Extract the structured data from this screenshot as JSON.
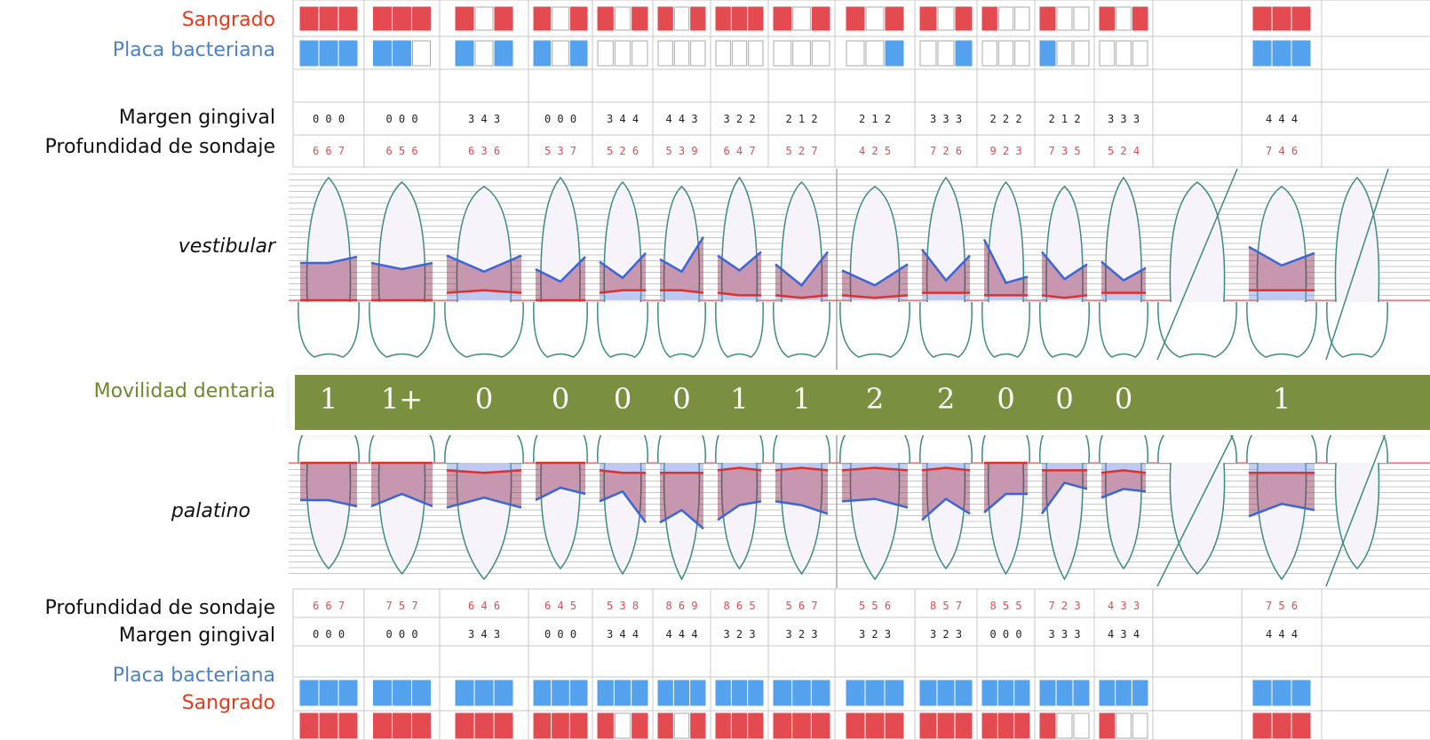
{
  "labels": {
    "sangrado_top": "Sangrado",
    "placa_top": "Placa bacteriana",
    "margen_top": "Margen gingival",
    "profundidad_top": "Profundidad de sondaje",
    "vestibular": "vestibular",
    "movilidad": "Movilidad dentaria",
    "palatino": "palatino",
    "profundidad_bottom": "Profundidad de sondaje",
    "margen_bottom": "Margen gingival",
    "placa_bottom": "Placa bacteriana",
    "sangrado_bottom": "Sangrado"
  },
  "colors": {
    "bleeding": "#e34b50",
    "plaque": "#54a2ee",
    "mobility": "#7a9040",
    "label_red": "#e8391b",
    "label_blue": "#4f80c2",
    "label_green": "#6b8a2c"
  },
  "teeth_count": 16,
  "top": {
    "sangrado": [
      [
        1,
        1,
        1
      ],
      [
        1,
        1,
        1
      ],
      [
        1,
        0,
        1
      ],
      [
        1,
        0,
        1
      ],
      [
        1,
        0,
        1
      ],
      [
        1,
        0,
        1
      ],
      [
        1,
        1,
        1
      ],
      [
        1,
        0,
        1
      ],
      [
        1,
        0,
        1
      ],
      [
        1,
        0,
        1
      ],
      [
        1,
        0,
        0
      ],
      [
        1,
        0,
        0
      ],
      [
        1,
        0,
        1
      ],
      null,
      [
        1,
        1,
        1
      ],
      null
    ],
    "placa": [
      [
        1,
        1,
        1
      ],
      [
        1,
        1,
        0
      ],
      [
        1,
        0,
        1
      ],
      [
        1,
        0,
        1
      ],
      [
        0,
        0,
        0
      ],
      [
        0,
        0,
        0
      ],
      [
        0,
        0,
        0
      ],
      [
        0,
        0,
        0
      ],
      [
        0,
        0,
        1
      ],
      [
        0,
        0,
        1
      ],
      [
        0,
        0,
        0
      ],
      [
        1,
        0,
        0
      ],
      [
        0,
        0,
        0
      ],
      null,
      [
        1,
        1,
        1
      ],
      null
    ],
    "margen": [
      "0 0 0",
      "0 0 0",
      "3 4 3",
      "0 0 0",
      "3 4 4",
      "4 4 3",
      "3 2 2",
      "2 1 2",
      "2 1 2",
      "3 3 3",
      "2 2 2",
      "2 1 2",
      "3 3 3",
      "",
      "4 4 4",
      ""
    ],
    "profundidad": [
      "6 6 7",
      "6 5 6",
      "6 3 6",
      "5 3 7",
      "5 2 6",
      "5 3 9",
      "6 4 7",
      "5 2 7",
      "4 2 5",
      "7 2 6",
      "9 2 3",
      "7 3 5",
      "5 2 4",
      "",
      "7 4 6",
      ""
    ]
  },
  "mobility": [
    "1",
    "1+",
    "0",
    "0",
    "0",
    "0",
    "1",
    "1",
    "2",
    "2",
    "0",
    "0",
    "0",
    "",
    "1",
    ""
  ],
  "bottom": {
    "profundidad": [
      "6 6 7",
      "7 5 7",
      "6 4 6",
      "6 4 5",
      "5 3 8",
      "8 6 9",
      "8 6 5",
      "5 6 7",
      "5 5 6",
      "8 5 7",
      "8 5 5",
      "7 2 3",
      "4 3 3",
      "",
      "7 5 6",
      ""
    ],
    "margen": [
      "0 0 0",
      "0 0 0",
      "3 4 3",
      "0 0 0",
      "3 4 4",
      "4 4 4",
      "3 2 3",
      "3 2 3",
      "3 2 3",
      "3 2 3",
      "0 0 0",
      "3 3 3",
      "4 3 4",
      "",
      "4 4 4",
      ""
    ],
    "placa": [
      [
        1,
        1,
        1
      ],
      [
        1,
        1,
        1
      ],
      [
        1,
        1,
        1
      ],
      [
        1,
        1,
        1
      ],
      [
        1,
        1,
        1
      ],
      [
        1,
        1,
        1
      ],
      [
        1,
        1,
        1
      ],
      [
        1,
        1,
        1
      ],
      [
        1,
        1,
        1
      ],
      [
        1,
        1,
        1
      ],
      [
        1,
        1,
        1
      ],
      [
        1,
        1,
        1
      ],
      [
        1,
        1,
        1
      ],
      null,
      [
        1,
        1,
        1
      ],
      null
    ],
    "sangrado": [
      [
        1,
        1,
        1
      ],
      [
        1,
        1,
        1
      ],
      [
        1,
        1,
        1
      ],
      [
        1,
        1,
        1
      ],
      [
        1,
        0,
        1
      ],
      [
        1,
        0,
        1
      ],
      [
        1,
        1,
        1
      ],
      [
        1,
        1,
        1
      ],
      [
        1,
        1,
        1
      ],
      [
        1,
        1,
        1
      ],
      [
        1,
        1,
        1
      ],
      [
        1,
        0,
        0
      ],
      [
        1,
        0,
        0
      ],
      null,
      [
        1,
        1,
        1
      ],
      null
    ]
  }
}
